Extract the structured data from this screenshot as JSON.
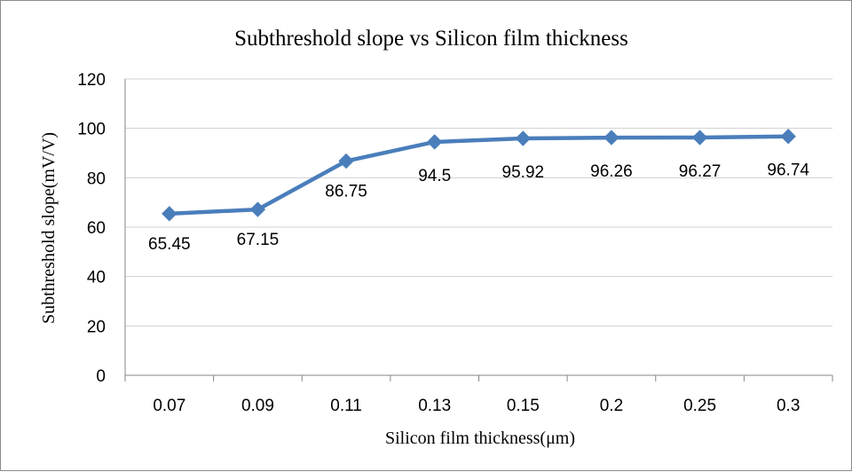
{
  "chart_data": {
    "type": "line",
    "title": "Subthreshold slope vs Silicon film thickness",
    "xlabel": "Silicon film thickness(μm)",
    "ylabel": "Subthreshold slope(mV/V)",
    "categories": [
      "0.07",
      "0.09",
      "0.11",
      "0.13",
      "0.15",
      "0.2",
      "0.25",
      "0.3"
    ],
    "series": [
      {
        "values": [
          65.45,
          67.15,
          86.75,
          94.5,
          95.92,
          96.26,
          96.27,
          96.74
        ],
        "data_labels": [
          "65.45",
          "67.15",
          "86.75",
          "94.5",
          "95.92",
          "96.26",
          "96.27",
          "96.74"
        ],
        "color": "#4a7ebb",
        "marker": "diamond"
      }
    ],
    "ylim": [
      0,
      120
    ],
    "yticks": [
      0,
      20,
      40,
      60,
      80,
      100,
      120
    ],
    "grid": true,
    "legend": "none"
  }
}
